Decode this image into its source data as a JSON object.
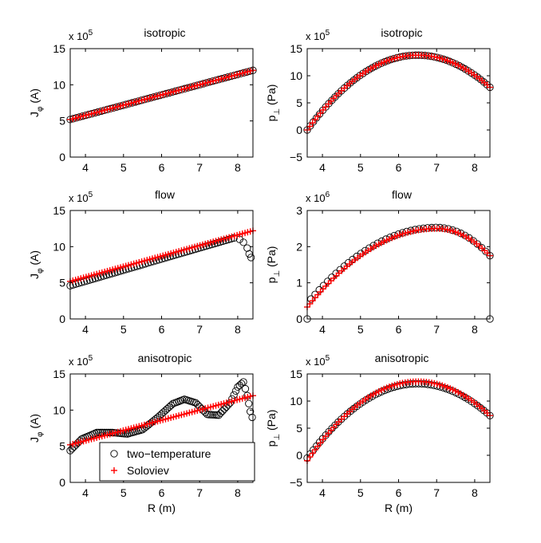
{
  "legend": {
    "entries": [
      {
        "label": "two−temperature",
        "marker": "circle",
        "color": "#000000"
      },
      {
        "label": "Soloviev",
        "marker": "plus",
        "color": "#ff0000"
      }
    ],
    "placement": "bottom-right of anisotropic J_phi panel"
  },
  "colors": {
    "measured": "#000000",
    "model": "#ff0000",
    "axes": "#000000"
  },
  "chart_data": [
    {
      "id": "p1",
      "type": "scatter",
      "title": "isotropic",
      "xlabel": "",
      "ylabel_main": "J",
      "ylabel_sub": "φ",
      "ylabel_unit": " (A)",
      "exp_base": "x 10",
      "exp_power": "5",
      "xlim": [
        3.6,
        8.4
      ],
      "ylim": [
        0,
        15
      ],
      "xticks": [
        4,
        5,
        6,
        7,
        8
      ],
      "yticks": [
        0,
        5,
        10,
        15
      ],
      "xtick_labels": [
        "4",
        "5",
        "6",
        "7",
        "8"
      ],
      "ytick_labels": [
        "0",
        "5",
        "10",
        "15"
      ],
      "soloviev": {
        "kind": "linear",
        "x0": 3.6,
        "y0": 5.2,
        "x1": 8.4,
        "y1": 12.0
      },
      "two_temp": {
        "kind": "linear",
        "x0": 3.6,
        "y0": 5.2,
        "x1": 8.4,
        "y1": 12.0
      }
    },
    {
      "id": "p2",
      "type": "scatter",
      "title": "isotropic",
      "xlabel": "",
      "ylabel_main": "p",
      "ylabel_sub": "⊥",
      "ylabel_unit": " (Pa)",
      "exp_base": "x 10",
      "exp_power": "5",
      "xlim": [
        3.6,
        8.4
      ],
      "ylim": [
        -5,
        15
      ],
      "xticks": [
        4,
        5,
        6,
        7,
        8
      ],
      "yticks": [
        -5,
        0,
        5,
        10,
        15
      ],
      "xtick_labels": [
        "4",
        "5",
        "6",
        "7",
        "8"
      ],
      "ytick_labels": [
        "−5",
        "0",
        "5",
        "10",
        "15"
      ],
      "soloviev": {
        "kind": "parabola",
        "x0": 3.6,
        "x1": 8.4,
        "peak_x": 6.5,
        "peak_y": 13.8,
        "y_start": 0.0
      },
      "two_temp": {
        "kind": "parabola",
        "x0": 3.6,
        "x1": 8.4,
        "peak_x": 6.5,
        "peak_y": 13.8,
        "y_start": 0.0
      }
    },
    {
      "id": "p3",
      "type": "scatter",
      "title": "flow",
      "xlabel": "",
      "ylabel_main": "J",
      "ylabel_sub": "φ",
      "ylabel_unit": " (A)",
      "exp_base": "x 10",
      "exp_power": "5",
      "xlim": [
        3.6,
        8.4
      ],
      "ylim": [
        0,
        15
      ],
      "xticks": [
        4,
        5,
        6,
        7,
        8
      ],
      "yticks": [
        0,
        5,
        10,
        15
      ],
      "xtick_labels": [
        "4",
        "5",
        "6",
        "7",
        "8"
      ],
      "ytick_labels": [
        "0",
        "5",
        "10",
        "15"
      ],
      "soloviev": {
        "kind": "linear",
        "x0": 3.6,
        "y0": 5.2,
        "x1": 8.4,
        "y1": 12.2
      },
      "two_temp": {
        "kind": "flowJ",
        "x0": 3.6,
        "y0": 4.6,
        "x1": 7.9,
        "y1": 11.2,
        "tail": [
          [
            8.05,
            11.0
          ],
          [
            8.15,
            10.6
          ],
          [
            8.25,
            9.8
          ],
          [
            8.3,
            9.0
          ],
          [
            8.35,
            8.5
          ]
        ]
      }
    },
    {
      "id": "p4",
      "type": "scatter",
      "title": "flow",
      "xlabel": "",
      "ylabel_main": "p",
      "ylabel_sub": "⊥",
      "ylabel_unit": " (Pa)",
      "exp_base": "x 10",
      "exp_power": "6",
      "xlim": [
        3.6,
        8.4
      ],
      "ylim": [
        0,
        3
      ],
      "xticks": [
        4,
        5,
        6,
        7,
        8
      ],
      "yticks": [
        0,
        1,
        2,
        3
      ],
      "xtick_labels": [
        "4",
        "5",
        "6",
        "7",
        "8"
      ],
      "ytick_labels": [
        "0",
        "1",
        "2",
        "3"
      ],
      "soloviev": {
        "kind": "asym",
        "x0": 3.6,
        "x1": 8.4,
        "peak_x": 7.0,
        "peak_y": 2.5,
        "y_start": 0.33,
        "y_end": 1.75
      },
      "two_temp": {
        "kind": "asym",
        "x0": 3.7,
        "x1": 8.4,
        "peak_x": 7.0,
        "peak_y": 2.53,
        "y_start": 0.55,
        "y_end": 1.75,
        "extra": [
          [
            3.6,
            0.0
          ],
          [
            8.4,
            0.0
          ]
        ]
      }
    },
    {
      "id": "p5",
      "type": "scatter",
      "title": "anisotropic",
      "xlabel": "R (m)",
      "ylabel_main": "J",
      "ylabel_sub": "φ",
      "ylabel_unit": " (A)",
      "exp_base": "x 10",
      "exp_power": "5",
      "xlim": [
        3.6,
        8.4
      ],
      "ylim": [
        0,
        15
      ],
      "xticks": [
        4,
        5,
        6,
        7,
        8
      ],
      "yticks": [
        0,
        5,
        10,
        15
      ],
      "xtick_labels": [
        "4",
        "5",
        "6",
        "7",
        "8"
      ],
      "ytick_labels": [
        "0",
        "5",
        "10",
        "15"
      ],
      "soloviev": {
        "kind": "linear",
        "x0": 3.6,
        "y0": 5.2,
        "x1": 8.4,
        "y1": 12.0
      },
      "two_temp": {
        "kind": "wave",
        "x0": 3.6,
        "x1": 8.4,
        "points": [
          [
            3.6,
            4.4
          ],
          [
            3.9,
            6.0
          ],
          [
            4.3,
            6.9
          ],
          [
            4.7,
            6.9
          ],
          [
            5.1,
            6.7
          ],
          [
            5.5,
            7.3
          ],
          [
            5.9,
            9.0
          ],
          [
            6.3,
            10.9
          ],
          [
            6.6,
            11.5
          ],
          [
            6.9,
            11.0
          ],
          [
            7.2,
            9.4
          ],
          [
            7.5,
            9.3
          ],
          [
            7.8,
            11.0
          ],
          [
            8.0,
            13.2
          ],
          [
            8.15,
            13.9
          ],
          [
            8.25,
            12.0
          ],
          [
            8.33,
            9.8
          ],
          [
            8.38,
            9.0
          ]
        ]
      }
    },
    {
      "id": "p6",
      "type": "scatter",
      "title": "anisotropic",
      "xlabel": "R (m)",
      "ylabel_main": "p",
      "ylabel_sub": "⊥",
      "ylabel_unit": " (Pa)",
      "exp_base": "x 10",
      "exp_power": "5",
      "xlim": [
        3.6,
        8.4
      ],
      "ylim": [
        -5,
        15
      ],
      "xticks": [
        4,
        5,
        6,
        7,
        8
      ],
      "yticks": [
        -5,
        0,
        5,
        10,
        15
      ],
      "xtick_labels": [
        "4",
        "5",
        "6",
        "7",
        "8"
      ],
      "ytick_labels": [
        "−5",
        "0",
        "5",
        "10",
        "15"
      ],
      "soloviev": {
        "kind": "parabola",
        "x0": 3.6,
        "x1": 8.4,
        "peak_x": 6.5,
        "peak_y": 13.6,
        "y_start": -1.0
      },
      "two_temp": {
        "kind": "parabola",
        "x0": 3.6,
        "x1": 8.4,
        "peak_x": 6.5,
        "peak_y": 13.2,
        "y_start": -0.5
      }
    }
  ]
}
